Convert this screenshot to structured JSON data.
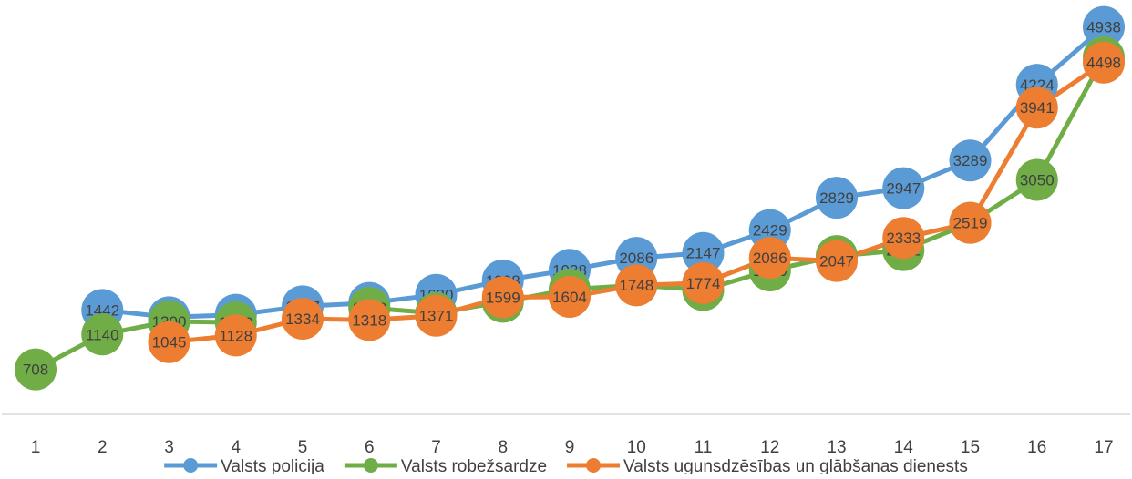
{
  "chart_data": {
    "type": "line",
    "x": [
      "1",
      "2",
      "3",
      "4",
      "5",
      "6",
      "7",
      "8",
      "9",
      "10",
      "11",
      "12",
      "13",
      "14",
      "15",
      "16",
      "17"
    ],
    "ylim": [
      0,
      5500
    ],
    "grid": false,
    "legend_position": "bottom",
    "series": [
      {
        "name": "Valsts policija",
        "color": "#5b9bd5",
        "values": [
          null,
          1442,
          1353,
          1383,
          1487,
          1529,
          1630,
          1808,
          1938,
          2086,
          2147,
          2429,
          2829,
          2947,
          3289,
          4224,
          4938
        ]
      },
      {
        "name": "Valsts robežsardze",
        "color": "#70ad47",
        "values": [
          708,
          1140,
          1300,
          1289,
          null,
          1468,
          1403,
          1543,
          1696,
          1748,
          1689,
          1930,
          2109,
          2182,
          2519,
          3050,
          4563
        ]
      },
      {
        "name": "Valsts ugunsdzēsības un glābšanas dienests",
        "color": "#ed7d31",
        "values": [
          null,
          null,
          1045,
          1128,
          1334,
          1318,
          1371,
          1599,
          1604,
          1748,
          1774,
          2086,
          2047,
          2333,
          2519,
          3941,
          4498
        ]
      }
    ]
  }
}
